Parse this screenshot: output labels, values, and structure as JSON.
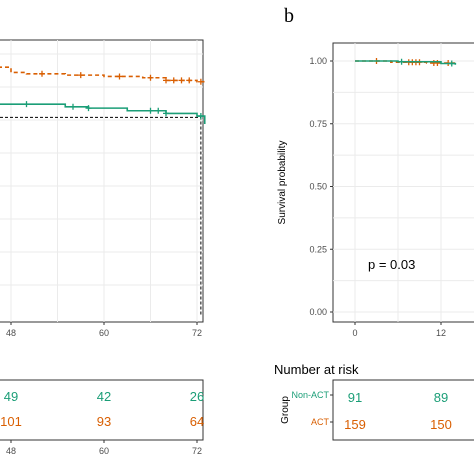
{
  "chart_data": [
    {
      "panel": "a (partially visible)",
      "type": "line",
      "subtype": "kaplan-meier",
      "x_ticks": [
        48,
        60,
        72
      ],
      "series": [
        {
          "color": "#d95f02",
          "style": "dashed",
          "x": [
            40,
            48,
            50,
            55,
            60,
            65,
            68,
            72,
            73
          ],
          "y": [
            0.95,
            0.93,
            0.925,
            0.92,
            0.915,
            0.91,
            0.9,
            0.895,
            0.89
          ]
        },
        {
          "color": "#1b9e77",
          "style": "solid",
          "x": [
            40,
            49,
            55,
            58,
            63,
            68,
            72,
            73
          ],
          "y": [
            0.81,
            0.81,
            0.8,
            0.795,
            0.785,
            0.775,
            0.765,
            0.735
          ]
        }
      ],
      "median_line": {
        "x": 72.5,
        "y": 0.76
      },
      "risk_table": {
        "x_ticks": [
          48,
          60,
          72
        ],
        "rows": [
          {
            "color": "#1b9e77",
            "values": [
              "49",
              "42",
              "26"
            ]
          },
          {
            "color": "#d95f02",
            "values": [
              "101",
              "93",
              "64"
            ]
          }
        ]
      }
    },
    {
      "panel": "b",
      "panel_label": "b",
      "type": "line",
      "subtype": "kaplan-meier",
      "ylabel": "Survival probability",
      "y_ticks": [
        "0.00",
        "0.25",
        "0.50",
        "0.75",
        "1.00"
      ],
      "ylim": [
        0,
        1
      ],
      "x_ticks": [
        0,
        12
      ],
      "annotation": "p = 0.03",
      "series": [
        {
          "color": "#d95f02",
          "style": "dashed",
          "x": [
            0,
            5,
            10,
            14
          ],
          "y": [
            1.0,
            0.995,
            0.992,
            0.99
          ]
        },
        {
          "color": "#1b9e77",
          "style": "solid",
          "x": [
            0,
            6,
            12,
            14
          ],
          "y": [
            1.0,
            0.997,
            0.99,
            0.985
          ]
        }
      ],
      "risk_table": {
        "title": "Number at risk",
        "group_label": "Group",
        "x_ticks": [
          0,
          12
        ],
        "rows": [
          {
            "name": "Non-ACT",
            "color": "#1b9e77",
            "values": [
              "91",
              "89"
            ]
          },
          {
            "name": "ACT",
            "color": "#d95f02",
            "values": [
              "159",
              "150"
            ]
          }
        ]
      }
    }
  ]
}
